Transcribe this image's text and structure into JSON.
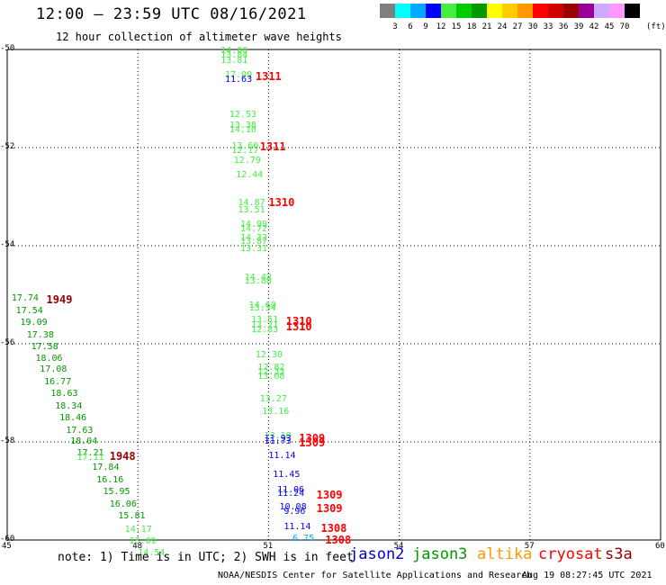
{
  "header": {
    "title": "12:00 — 23:59 UTC 08/16/2021",
    "subtitle": "12 hour collection of altimeter wave heights"
  },
  "legend": {
    "colors": [
      "#7f7f7f",
      "#00ffff",
      "#00aaff",
      "#0000ff",
      "#44ee44",
      "#00cc00",
      "#009900",
      "#ffff00",
      "#ffcc00",
      "#ff9900",
      "#ff0000",
      "#cc0000",
      "#990000",
      "#990099",
      "#ccaaff",
      "#ff99ff",
      "#000000"
    ],
    "labels": [
      "3",
      "6",
      "9",
      "12",
      "15",
      "18",
      "21",
      "24",
      "27",
      "30",
      "33",
      "36",
      "39",
      "42",
      "45",
      "70"
    ],
    "unit": "(ft)"
  },
  "map": {
    "x_ticks": [
      "45",
      "48",
      "51",
      "54",
      "57",
      "60"
    ],
    "y_ticks": [
      "-50",
      "-52",
      "-54",
      "-56",
      "-58",
      "-60"
    ],
    "x_range": [
      45,
      60
    ],
    "y_range": [
      -50,
      -60
    ]
  },
  "swh_labels": [
    {
      "text": "14.00",
      "lon": 49.9,
      "lat": -50.05,
      "color": "#44ee44"
    },
    {
      "text": "13.84",
      "lon": 49.9,
      "lat": -50.15,
      "color": "#44ee44"
    },
    {
      "text": "13.81",
      "lon": 49.9,
      "lat": -50.25,
      "color": "#44ee44"
    },
    {
      "text": "17.09",
      "lon": 50.0,
      "lat": -50.55,
      "color": "#44ee44"
    },
    {
      "text": "11.63",
      "lon": 50.0,
      "lat": -50.65,
      "color": "#0000ff"
    },
    {
      "text": "1311",
      "lon": 50.7,
      "lat": -50.55,
      "color": "#ff0000"
    },
    {
      "text": "12.53",
      "lon": 50.1,
      "lat": -51.35,
      "color": "#44ee44"
    },
    {
      "text": "13.38",
      "lon": 50.1,
      "lat": -51.57,
      "color": "#44ee44"
    },
    {
      "text": "14.10",
      "lon": 50.1,
      "lat": -51.67,
      "color": "#44ee44"
    },
    {
      "text": "13.60",
      "lon": 50.15,
      "lat": -52.0,
      "color": "#44ee44"
    },
    {
      "text": "12.17",
      "lon": 50.15,
      "lat": -52.1,
      "color": "#44ee44"
    },
    {
      "text": "12.79",
      "lon": 50.2,
      "lat": -52.3,
      "color": "#44ee44"
    },
    {
      "text": "12.44",
      "lon": 50.25,
      "lat": -52.58,
      "color": "#44ee44"
    },
    {
      "text": "1311",
      "lon": 50.8,
      "lat": -51.98,
      "color": "#ff0000"
    },
    {
      "text": "14.87",
      "lon": 50.3,
      "lat": -53.15,
      "color": "#44ee44"
    },
    {
      "text": "13.51",
      "lon": 50.3,
      "lat": -53.3,
      "color": "#44ee44"
    },
    {
      "text": "1310",
      "lon": 51.0,
      "lat": -53.12,
      "color": "#ff0000"
    },
    {
      "text": "14.99",
      "lon": 50.35,
      "lat": -53.6,
      "color": "#44ee44"
    },
    {
      "text": "14.72",
      "lon": 50.35,
      "lat": -53.68,
      "color": "#44ee44"
    },
    {
      "text": "14.33",
      "lon": 50.35,
      "lat": -53.88,
      "color": "#44ee44"
    },
    {
      "text": "13.87",
      "lon": 50.35,
      "lat": -53.95,
      "color": "#44ee44"
    },
    {
      "text": "13.31",
      "lon": 50.35,
      "lat": -54.1,
      "color": "#44ee44"
    },
    {
      "text": "14.42",
      "lon": 50.45,
      "lat": -54.67,
      "color": "#44ee44"
    },
    {
      "text": "13.88",
      "lon": 50.45,
      "lat": -54.75,
      "color": "#44ee44"
    },
    {
      "text": "14.60",
      "lon": 50.55,
      "lat": -55.25,
      "color": "#44ee44"
    },
    {
      "text": "13.54",
      "lon": 50.55,
      "lat": -55.3,
      "color": "#44ee44"
    },
    {
      "text": "13.51",
      "lon": 50.6,
      "lat": -55.55,
      "color": "#44ee44"
    },
    {
      "text": "13.21",
      "lon": 50.6,
      "lat": -55.65,
      "color": "#44ee44"
    },
    {
      "text": "12.83",
      "lon": 50.6,
      "lat": -55.75,
      "color": "#44ee44"
    },
    {
      "text": "1310",
      "lon": 51.4,
      "lat": -55.55,
      "color": "#ff0000"
    },
    {
      "text": "1310",
      "lon": 51.4,
      "lat": -55.65,
      "color": "#ff0000"
    },
    {
      "text": "12.30",
      "lon": 50.7,
      "lat": -56.25,
      "color": "#44ee44"
    },
    {
      "text": "12.82",
      "lon": 50.75,
      "lat": -56.52,
      "color": "#44ee44"
    },
    {
      "text": "12.33",
      "lon": 50.75,
      "lat": -56.6,
      "color": "#44ee44"
    },
    {
      "text": "13.08",
      "lon": 50.75,
      "lat": -56.7,
      "color": "#44ee44"
    },
    {
      "text": "13.27",
      "lon": 50.8,
      "lat": -57.15,
      "color": "#44ee44"
    },
    {
      "text": "13.16",
      "lon": 50.85,
      "lat": -57.42,
      "color": "#44ee44"
    },
    {
      "text": "13.10",
      "lon": 50.9,
      "lat": -57.9,
      "color": "#44ee44"
    },
    {
      "text": "11.93",
      "lon": 50.9,
      "lat": -57.97,
      "color": "#0000ff"
    },
    {
      "text": "11.73",
      "lon": 50.9,
      "lat": -58.02,
      "color": "#0000ff"
    },
    {
      "text": "1309",
      "lon": 51.7,
      "lat": -57.92,
      "color": "#ff0000"
    },
    {
      "text": "1309",
      "lon": 51.7,
      "lat": -58.02,
      "color": "#ff0000"
    },
    {
      "text": "11.14",
      "lon": 51.0,
      "lat": -58.32,
      "color": "#0000ff"
    },
    {
      "text": "11.45",
      "lon": 51.1,
      "lat": -58.7,
      "color": "#0000ff"
    },
    {
      "text": "11.06",
      "lon": 51.2,
      "lat": -59.0,
      "color": "#0000ff"
    },
    {
      "text": "11.24",
      "lon": 51.2,
      "lat": -59.08,
      "color": "#0000ff"
    },
    {
      "text": "1309",
      "lon": 52.1,
      "lat": -59.08,
      "color": "#ff0000"
    },
    {
      "text": "10.08",
      "lon": 51.25,
      "lat": -59.35,
      "color": "#0000ff"
    },
    {
      "text": "9.96",
      "lon": 51.35,
      "lat": -59.45,
      "color": "#0000ff"
    },
    {
      "text": "1309",
      "lon": 52.1,
      "lat": -59.35,
      "color": "#ff0000"
    },
    {
      "text": "11.14",
      "lon": 51.35,
      "lat": -59.77,
      "color": "#0000ff"
    },
    {
      "text": "1308",
      "lon": 52.2,
      "lat": -59.77,
      "color": "#ff0000"
    },
    {
      "text": "6.75",
      "lon": 51.55,
      "lat": -60.0,
      "color": "#00aaff"
    },
    {
      "text": "1308",
      "lon": 52.3,
      "lat": -60.0,
      "color": "#ff0000"
    },
    {
      "text": "17.74",
      "lon": 45.1,
      "lat": -55.1,
      "color": "#009900"
    },
    {
      "text": "1949",
      "lon": 45.9,
      "lat": -55.1,
      "color": "#990000"
    },
    {
      "text": "17.54",
      "lon": 45.2,
      "lat": -55.35,
      "color": "#009900"
    },
    {
      "text": "19.09",
      "lon": 45.3,
      "lat": -55.6,
      "color": "#009900"
    },
    {
      "text": "17.38",
      "lon": 45.45,
      "lat": -55.85,
      "color": "#009900"
    },
    {
      "text": "17.58",
      "lon": 45.55,
      "lat": -56.1,
      "color": "#009900"
    },
    {
      "text": "18.06",
      "lon": 45.65,
      "lat": -56.33,
      "color": "#009900"
    },
    {
      "text": "17.08",
      "lon": 45.75,
      "lat": -56.55,
      "color": "#009900"
    },
    {
      "text": "16.77",
      "lon": 45.85,
      "lat": -56.8,
      "color": "#009900"
    },
    {
      "text": "18.63",
      "lon": 46.0,
      "lat": -57.05,
      "color": "#009900"
    },
    {
      "text": "18.34",
      "lon": 46.1,
      "lat": -57.3,
      "color": "#009900"
    },
    {
      "text": "18.46",
      "lon": 46.2,
      "lat": -57.55,
      "color": "#009900"
    },
    {
      "text": "17.63",
      "lon": 46.35,
      "lat": -57.8,
      "color": "#009900"
    },
    {
      "text": "18.04",
      "lon": 46.45,
      "lat": -58.02,
      "color": "#009900"
    },
    {
      "text": "17.21",
      "lon": 46.6,
      "lat": -58.25,
      "color": "#009900"
    },
    {
      "text": "17.11",
      "lon": 46.6,
      "lat": -58.35,
      "color": "#44ee44"
    },
    {
      "text": "1948",
      "lon": 47.35,
      "lat": -58.3,
      "color": "#990000"
    },
    {
      "text": "17.84",
      "lon": 46.95,
      "lat": -58.55,
      "color": "#009900"
    },
    {
      "text": "16.16",
      "lon": 47.05,
      "lat": -58.8,
      "color": "#009900"
    },
    {
      "text": "15.95",
      "lon": 47.2,
      "lat": -59.05,
      "color": "#009900"
    },
    {
      "text": "16.06",
      "lon": 47.35,
      "lat": -59.3,
      "color": "#009900"
    },
    {
      "text": "15.81",
      "lon": 47.55,
      "lat": -59.55,
      "color": "#009900"
    },
    {
      "text": "14.17",
      "lon": 47.7,
      "lat": -59.82,
      "color": "#44ee44"
    },
    {
      "text": "13.09",
      "lon": 47.8,
      "lat": -60.05,
      "color": "#44ee44"
    },
    {
      "text": "14.54",
      "lon": 48.0,
      "lat": -60.3,
      "color": "#44ee44"
    }
  ],
  "footer": {
    "note": "note: 1) Time is in UTC; 2) SWH is in feet",
    "satellites": [
      {
        "name": "jason2",
        "color": "#0000cc"
      },
      {
        "name": "jason3",
        "color": "#009900"
      },
      {
        "name": "altika",
        "color": "#ff9900"
      },
      {
        "name": "cryosat",
        "color": "#ff0000"
      },
      {
        "name": "s3a",
        "color": "#990000"
      }
    ],
    "credit": "NOAA/NESDIS Center for Satellite Applications and Research",
    "generated": "Aug 19 08:27:45 UTC 2021"
  }
}
